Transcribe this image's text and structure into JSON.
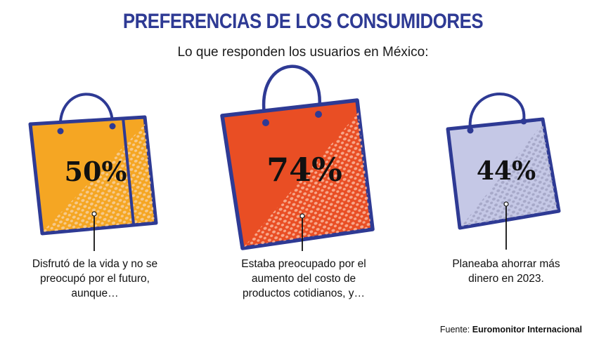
{
  "title": "PREFERENCIAS DE LOS CONSUMIDORES",
  "subtitle": "Lo que responden los usuarios en México:",
  "chart_data": {
    "type": "pictogram",
    "title": "PREFERENCIAS DE LOS CONSUMIDORES",
    "subtitle": "Lo que responden los usuarios en México:",
    "categories": [
      "Disfrutó de la vida y no se preocupó por el futuro, aunque…",
      "Estaba preocupado por el aumento del costo de productos cotidianos, y…",
      "Planeaba ahorrar más dinero en 2023."
    ],
    "values": [
      50,
      74,
      44
    ],
    "labels": [
      "50%",
      "74%",
      "44%"
    ],
    "colors": [
      "#f5a623",
      "#e94e24",
      "#c5c8e6"
    ]
  },
  "captions": [
    "Disfrutó de la vida y no se preocupó por el futuro, aunque…",
    "Estaba preocupado por el aumento del costo de productos cotidianos, y…",
    "Planeaba ahorrar más dinero en 2023."
  ],
  "source_prefix": "Fuente:",
  "source_name": "Euromonitor Internacional",
  "colors": {
    "outline": "#2e3a94",
    "title": "#2e3a94",
    "pattern_light": "#f6c98a",
    "pattern_orange": "#f7a78a",
    "pattern_lilac": "#a7a9c9"
  }
}
